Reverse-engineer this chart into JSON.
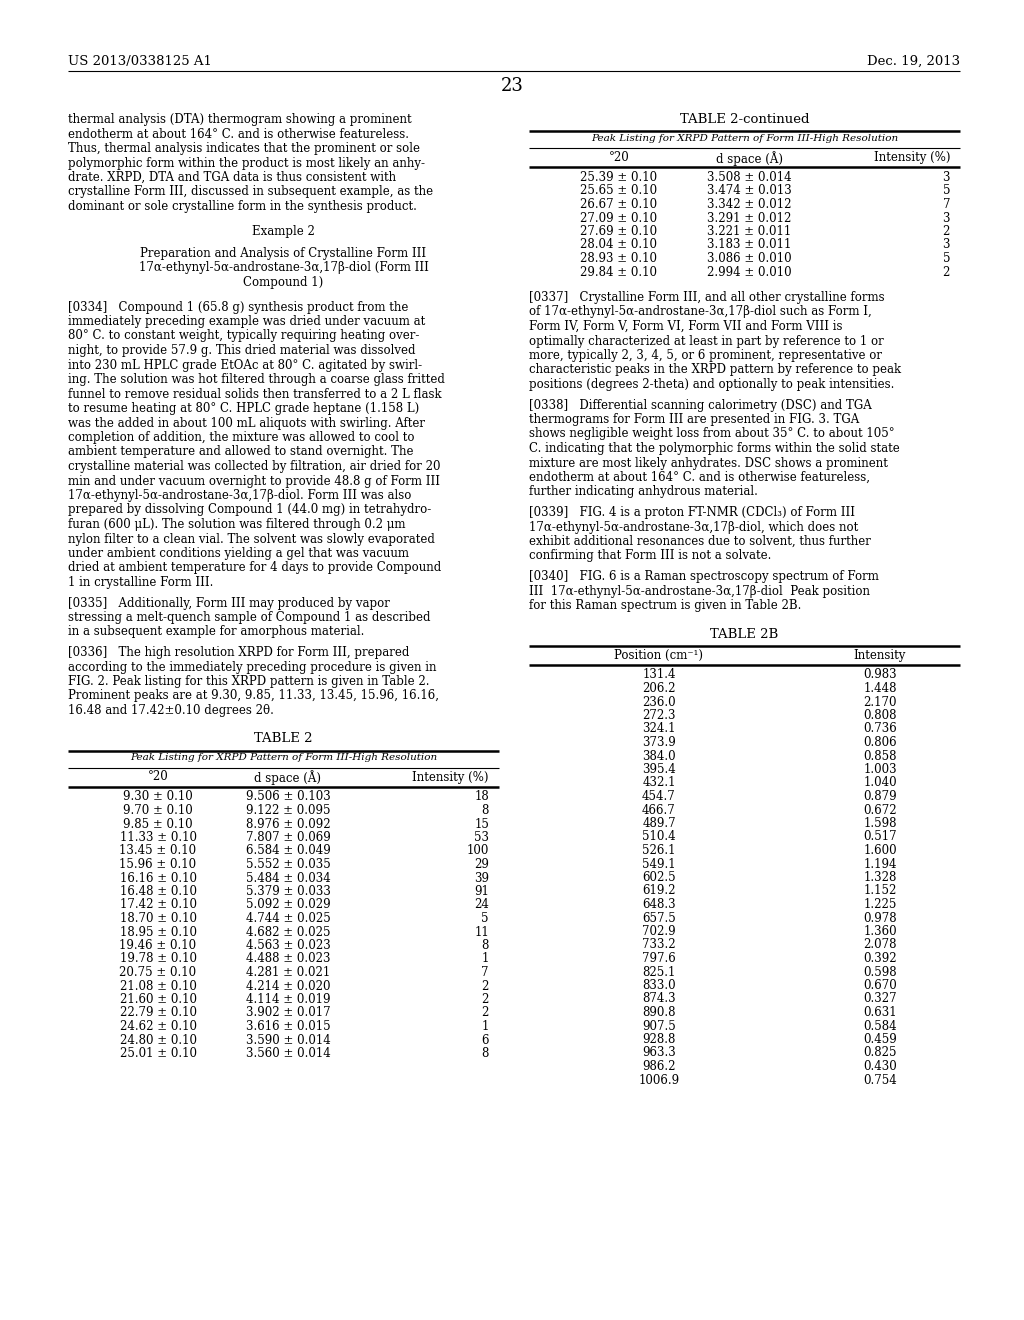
{
  "header_left": "US 2013/0338125 A1",
  "header_right": "Dec. 19, 2013",
  "page_number": "23",
  "bg_color": "#ffffff",
  "left_col_lines": [
    "thermal analysis (DTA) thermogram showing a prominent",
    "endotherm at about 164° C. and is otherwise featureless.",
    "Thus, thermal analysis indicates that the prominent or sole",
    "polymorphic form within the product is most likely an anhy-",
    "drate. XRPD, DTA and TGA data is thus consistent with",
    "crystalline Form III, discussed in subsequent example, as the",
    "dominant or sole crystalline form in the synthesis product."
  ],
  "example2_lines": [
    "Example 2",
    "Preparation and Analysis of Crystalline Form III",
    "17α-ethynyl-5α-androstane-3α,17β-diol (Form III",
    "Compound 1)"
  ],
  "para0334_lines": [
    "[0334]   Compound 1 (65.8 g) synthesis product from the",
    "immediately preceding example was dried under vacuum at",
    "80° C. to constant weight, typically requiring heating over-",
    "night, to provide 57.9 g. This dried material was dissolved",
    "into 230 mL HPLC grade EtOAc at 80° C. agitated by swirl-",
    "ing. The solution was hot filtered through a coarse glass fritted",
    "funnel to remove residual solids then transferred to a 2 L flask",
    "to resume heating at 80° C. HPLC grade heptane (1.158 L)",
    "was the added in about 100 mL aliquots with swirling. After",
    "completion of addition, the mixture was allowed to cool to",
    "ambient temperature and allowed to stand overnight. The",
    "crystalline material was collected by filtration, air dried for 20",
    "min and under vacuum overnight to provide 48.8 g of Form III",
    "17α-ethynyl-5α-androstane-3α,17β-diol. Form III was also",
    "prepared by dissolving Compound 1 (44.0 mg) in tetrahydro-",
    "furan (600 μL). The solution was filtered through 0.2 μm",
    "nylon filter to a clean vial. The solvent was slowly evaporated",
    "under ambient conditions yielding a gel that was vacuum",
    "dried at ambient temperature for 4 days to provide Compound",
    "1 in crystalline Form III."
  ],
  "para0335_lines": [
    "[0335]   Additionally, Form III may produced by vapor",
    "stressing a melt-quench sample of Compound 1 as described",
    "in a subsequent example for amorphous material."
  ],
  "para0336_lines": [
    "[0336]   The high resolution XRPD for Form III, prepared",
    "according to the immediately preceding procedure is given in",
    "FIG. 2. Peak listing for this XRPD pattern is given in Table 2.",
    "Prominent peaks are at 9.30, 9.85, 11.33, 13.45, 15.96, 16.16,",
    "16.48 and 17.42±0.10 degrees 2θ."
  ],
  "para0337_lines": [
    "[0337]   Crystalline Form III, and all other crystalline forms",
    "of 17α-ethynyl-5α-androstane-3α,17β-diol such as Form I,",
    "Form IV, Form V, Form VI, Form VII and Form VIII is",
    "optimally characterized at least in part by reference to 1 or",
    "more, typically 2, 3, 4, 5, or 6 prominent, representative or",
    "characteristic peaks in the XRPD pattern by reference to peak",
    "positions (degrees 2-theta) and optionally to peak intensities."
  ],
  "para0338_lines": [
    "[0338]   Differential scanning calorimetry (DSC) and TGA",
    "thermograms for Form III are presented in FIG. 3. TGA",
    "shows negligible weight loss from about 35° C. to about 105°",
    "C. indicating that the polymorphic forms within the solid state",
    "mixture are most likely anhydrates. DSC shows a prominent",
    "endotherm at about 164° C. and is otherwise featureless,",
    "further indicating anhydrous material."
  ],
  "para0339_lines": [
    "[0339]   FIG. 4 is a proton FT-NMR (CDCl₃) of Form III",
    "17α-ethynyl-5α-androstane-3α,17β-diol, which does not",
    "exhibit additional resonances due to solvent, thus further",
    "confirming that Form III is not a solvate."
  ],
  "para0340_lines": [
    "[0340]   FIG. 6 is a Raman spectroscopy spectrum of Form",
    "III  17α-ethynyl-5α-androstane-3α,17β-diol  Peak position",
    "for this Raman spectrum is given in Table 2B."
  ],
  "table2c_title": "TABLE 2-continued",
  "table2c_subtitle": "Peak Listing for XRPD Pattern of Form III-High Resolution",
  "table2c_headers": [
    "°20",
    "d space (Å)",
    "Intensity (%)"
  ],
  "table2c_rows": [
    [
      "25.39 ± 0.10",
      "3.508 ± 0.014",
      "3"
    ],
    [
      "25.65 ± 0.10",
      "3.474 ± 0.013",
      "5"
    ],
    [
      "26.67 ± 0.10",
      "3.342 ± 0.012",
      "7"
    ],
    [
      "27.09 ± 0.10",
      "3.291 ± 0.012",
      "3"
    ],
    [
      "27.69 ± 0.10",
      "3.221 ± 0.011",
      "2"
    ],
    [
      "28.04 ± 0.10",
      "3.183 ± 0.011",
      "3"
    ],
    [
      "28.93 ± 0.10",
      "3.086 ± 0.010",
      "5"
    ],
    [
      "29.84 ± 0.10",
      "2.994 ± 0.010",
      "2"
    ]
  ],
  "table2_title": "TABLE 2",
  "table2_subtitle": "Peak Listing for XRPD Pattern of Form III-High Resolution",
  "table2_headers": [
    "°20",
    "d space (Å)",
    "Intensity (%)"
  ],
  "table2_rows": [
    [
      "9.30 ± 0.10",
      "9.506 ± 0.103",
      "18"
    ],
    [
      "9.70 ± 0.10",
      "9.122 ± 0.095",
      "8"
    ],
    [
      "9.85 ± 0.10",
      "8.976 ± 0.092",
      "15"
    ],
    [
      "11.33 ± 0.10",
      "7.807 ± 0.069",
      "53"
    ],
    [
      "13.45 ± 0.10",
      "6.584 ± 0.049",
      "100"
    ],
    [
      "15.96 ± 0.10",
      "5.552 ± 0.035",
      "29"
    ],
    [
      "16.16 ± 0.10",
      "5.484 ± 0.034",
      "39"
    ],
    [
      "16.48 ± 0.10",
      "5.379 ± 0.033",
      "91"
    ],
    [
      "17.42 ± 0.10",
      "5.092 ± 0.029",
      "24"
    ],
    [
      "18.70 ± 0.10",
      "4.744 ± 0.025",
      "5"
    ],
    [
      "18.95 ± 0.10",
      "4.682 ± 0.025",
      "11"
    ],
    [
      "19.46 ± 0.10",
      "4.563 ± 0.023",
      "8"
    ],
    [
      "19.78 ± 0.10",
      "4.488 ± 0.023",
      "1"
    ],
    [
      "20.75 ± 0.10",
      "4.281 ± 0.021",
      "7"
    ],
    [
      "21.08 ± 0.10",
      "4.214 ± 0.020",
      "2"
    ],
    [
      "21.60 ± 0.10",
      "4.114 ± 0.019",
      "2"
    ],
    [
      "22.79 ± 0.10",
      "3.902 ± 0.017",
      "2"
    ],
    [
      "24.62 ± 0.10",
      "3.616 ± 0.015",
      "1"
    ],
    [
      "24.80 ± 0.10",
      "3.590 ± 0.014",
      "6"
    ],
    [
      "25.01 ± 0.10",
      "3.560 ± 0.014",
      "8"
    ]
  ],
  "table2b_title": "TABLE 2B",
  "table2b_headers": [
    "Position (cm⁻¹)",
    "Intensity"
  ],
  "table2b_rows": [
    [
      "131.4",
      "0.983"
    ],
    [
      "206.2",
      "1.448"
    ],
    [
      "236.0",
      "2.170"
    ],
    [
      "272.3",
      "0.808"
    ],
    [
      "324.1",
      "0.736"
    ],
    [
      "373.9",
      "0.806"
    ],
    [
      "384.0",
      "0.858"
    ],
    [
      "395.4",
      "1.003"
    ],
    [
      "432.1",
      "1.040"
    ],
    [
      "454.7",
      "0.879"
    ],
    [
      "466.7",
      "0.672"
    ],
    [
      "489.7",
      "1.598"
    ],
    [
      "510.4",
      "0.517"
    ],
    [
      "526.1",
      "1.600"
    ],
    [
      "549.1",
      "1.194"
    ],
    [
      "602.5",
      "1.328"
    ],
    [
      "619.2",
      "1.152"
    ],
    [
      "648.3",
      "1.225"
    ],
    [
      "657.5",
      "0.978"
    ],
    [
      "702.9",
      "1.360"
    ],
    [
      "733.2",
      "2.078"
    ],
    [
      "797.6",
      "0.392"
    ],
    [
      "825.1",
      "0.598"
    ],
    [
      "833.0",
      "0.670"
    ],
    [
      "874.3",
      "0.327"
    ],
    [
      "890.8",
      "0.631"
    ],
    [
      "907.5",
      "0.584"
    ],
    [
      "928.8",
      "0.459"
    ],
    [
      "963.3",
      "0.825"
    ],
    [
      "986.2",
      "0.430"
    ],
    [
      "1006.9",
      "0.754"
    ]
  ]
}
